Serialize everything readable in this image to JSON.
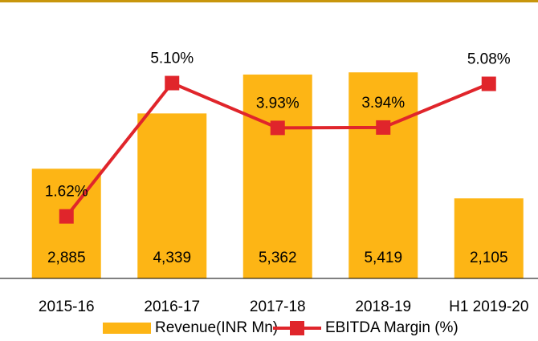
{
  "chart_data": {
    "type": "bar-line",
    "categories": [
      "2015-16",
      "2016-17",
      "2017-18",
      "2018-19",
      "H1 2019-20"
    ],
    "series": [
      {
        "name": "Revenue(INR Mn)",
        "type": "bar",
        "color": "#fdb515",
        "values": [
          2885,
          4339,
          5362,
          5419,
          2105
        ],
        "value_labels": [
          "2,885",
          "4,339",
          "5,362",
          "5,419",
          "2,105"
        ]
      },
      {
        "name": "EBITDA Margin (%)",
        "type": "line",
        "axis": "y2",
        "color": "#e0252b",
        "values": [
          1.62,
          5.1,
          3.93,
          3.94,
          5.08
        ],
        "value_labels": [
          "1.62%",
          "5.10%",
          "3.93%",
          "3.94%",
          "5.08%"
        ]
      }
    ],
    "ylim": [
      0,
      6900
    ],
    "y2lim": [
      0,
      6.85
    ],
    "legend": "bottom"
  }
}
